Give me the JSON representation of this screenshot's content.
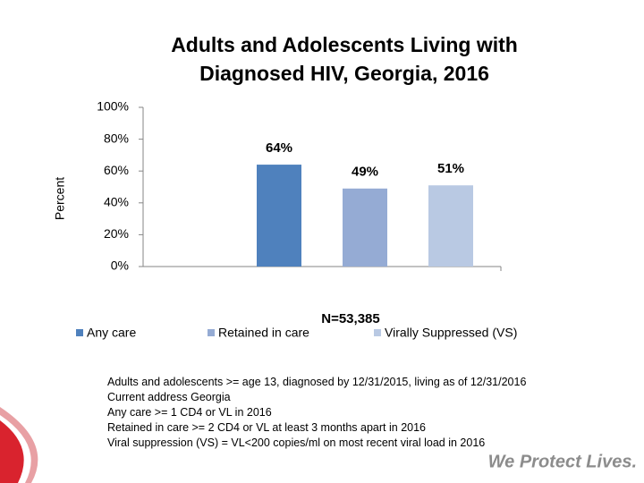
{
  "chart_data": {
    "type": "bar",
    "title": [
      "Adults and Adolescents Living with",
      "Diagnosed HIV, Georgia, 2016"
    ],
    "y_label": "Percent",
    "series": [
      {
        "name": "Any care",
        "color": "#4f81bd",
        "values": [
          64
        ],
        "value_labels": [
          "64%"
        ]
      },
      {
        "name": "Retained in care",
        "color": "#95abd4",
        "values": [
          49
        ],
        "value_labels": [
          "49%"
        ]
      },
      {
        "name": "Virally Suppressed (VS)",
        "color": "#b9c9e3",
        "values": [
          51
        ],
        "value_labels": [
          "51%"
        ]
      }
    ],
    "ylim": [
      0,
      100
    ],
    "yticks": [
      {
        "value": 0,
        "label": "0%"
      },
      {
        "value": 20,
        "label": "20%"
      },
      {
        "value": 40,
        "label": "40%"
      },
      {
        "value": 60,
        "label": "60%"
      },
      {
        "value": 80,
        "label": "80%"
      },
      {
        "value": 100,
        "label": "100%"
      }
    ],
    "annotation": "N=53,385"
  },
  "footnotes": [
    "Adults and adolescents >= age 13, diagnosed by 12/31/2015, living as of 12/31/2016",
    "Current address Georgia",
    "Any care >= 1 CD4 or VL in 2016",
    "Retained in care >= 2 CD4 or VL at least 3 months apart in 2016",
    "Viral suppression (VS) = VL<200 copies/ml on most recent viral load in 2016"
  ],
  "brand": "We Protect Lives."
}
